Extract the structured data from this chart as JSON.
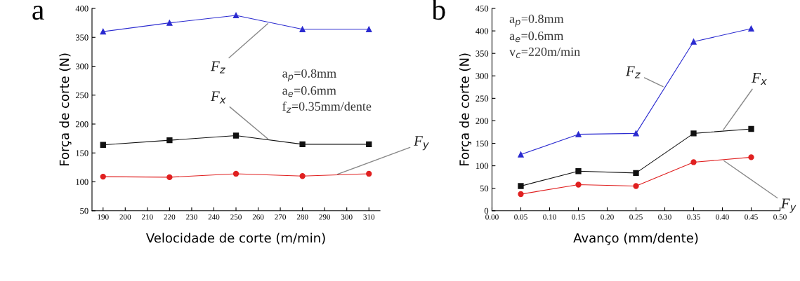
{
  "chart_data": [
    {
      "type": "line",
      "title": "a",
      "xlabel": "Velocidade de corte (m/min)",
      "ylabel": "Força de corte (N)",
      "x": [
        190,
        220,
        250,
        280,
        310
      ],
      "xlim": [
        185,
        315
      ],
      "xticks": [
        190,
        200,
        210,
        220,
        230,
        240,
        250,
        260,
        270,
        280,
        290,
        300,
        310
      ],
      "ylim": [
        50,
        400
      ],
      "yticks": [
        50,
        100,
        150,
        200,
        250,
        300,
        350,
        400
      ],
      "grid": false,
      "legend": false,
      "series": [
        {
          "name": "F$_{z}$",
          "color": "#2b2bd0",
          "marker": "triangle",
          "values": [
            360,
            375,
            388,
            364,
            364
          ]
        },
        {
          "name": "F$_{x}$",
          "color": "#111111",
          "marker": "square",
          "values": [
            164,
            172,
            180,
            165,
            165
          ]
        },
        {
          "name": "F$_{y}$",
          "color": "#e02020",
          "marker": "circle",
          "values": [
            109,
            108,
            114,
            110,
            114
          ]
        }
      ],
      "annotations": [
        "a$_{p}$=0.8mm\na$_{e}$=0.6mm\nf$_{z}$=0.35mm/dente"
      ]
    },
    {
      "type": "line",
      "title": "b",
      "xlabel": "Avanço (mm/dente)",
      "ylabel": "Força de corte (N)",
      "x": [
        0.05,
        0.15,
        0.25,
        0.35,
        0.45
      ],
      "xlim": [
        0,
        0.5
      ],
      "xticks": [
        {
          "value": 0,
          "label": "0.00"
        },
        {
          "value": 0.05,
          "label": "0.05"
        },
        {
          "value": 0.1,
          "label": "0.10"
        },
        {
          "value": 0.15,
          "label": "0.15"
        },
        {
          "value": 0.2,
          "label": "0.20"
        },
        {
          "value": 0.25,
          "label": "0.25"
        },
        {
          "value": 0.3,
          "label": "0.30"
        },
        {
          "value": 0.35,
          "label": "0.35"
        },
        {
          "value": 0.4,
          "label": "0.40"
        },
        {
          "value": 0.45,
          "label": "0.45"
        },
        {
          "value": 0.5,
          "label": "0.50"
        }
      ],
      "ylim": [
        0,
        450
      ],
      "yticks": [
        0,
        50,
        100,
        150,
        200,
        250,
        300,
        350,
        400,
        450
      ],
      "grid": false,
      "legend": false,
      "series": [
        {
          "name": "F$_{z}$",
          "color": "#2b2bd0",
          "marker": "triangle",
          "values": [
            125,
            170,
            172,
            376,
            405
          ]
        },
        {
          "name": "F$_{x}$",
          "color": "#111111",
          "marker": "square",
          "values": [
            55,
            88,
            84,
            172,
            182
          ]
        },
        {
          "name": "F$_{y}$",
          "color": "#e02020",
          "marker": "circle",
          "values": [
            37,
            58,
            55,
            108,
            119
          ]
        }
      ],
      "annotations": [
        "a$_{p}$=0.8mm\na$_{e}$=0.6mm\nv$_{c}$=220m/min"
      ]
    }
  ]
}
